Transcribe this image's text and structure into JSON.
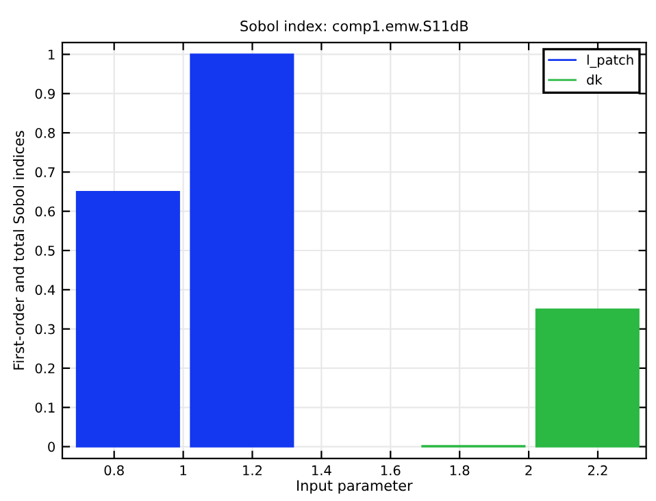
{
  "chart_data": {
    "type": "bar",
    "title": "Sobol index: comp1.emw.S11dB",
    "xlabel": "Input parameter",
    "ylabel": "First-order and total Sobol indices",
    "series": [
      {
        "name": "l_patch",
        "color": "#1437f0",
        "x": [
          0.84,
          1.17
        ],
        "values": [
          0.65,
          1.0
        ]
      },
      {
        "name": "dk",
        "color": "#2bb843",
        "x": [
          1.84,
          2.17
        ],
        "values": [
          0.002,
          0.35
        ]
      }
    ],
    "xlim": [
      0.65,
      2.34
    ],
    "xticks": [
      0.8,
      1,
      1.2,
      1.4,
      1.6,
      1.8,
      2,
      2.2
    ],
    "ylim": [
      -0.03,
      1.03
    ],
    "yticks": [
      0,
      0.1,
      0.2,
      0.3,
      0.4,
      0.5,
      0.6,
      0.7,
      0.8,
      0.9,
      1
    ],
    "grid": true,
    "legend": "top right"
  }
}
